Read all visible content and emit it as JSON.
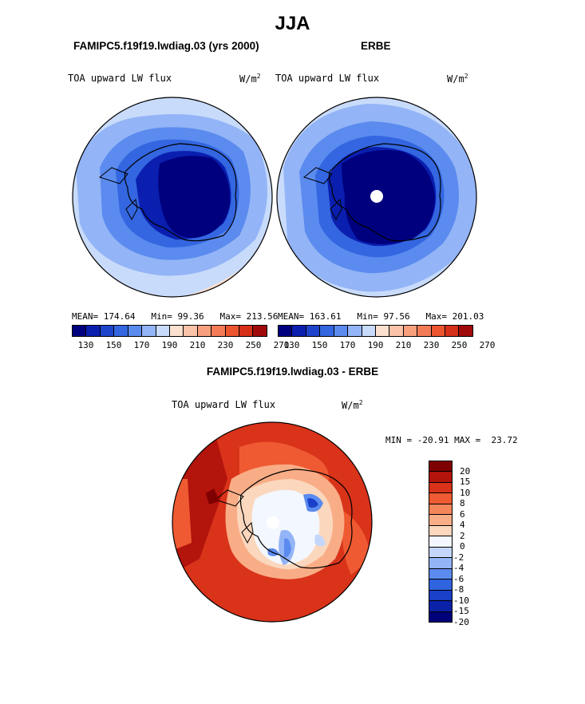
{
  "title": "JJA",
  "panel_model_label": "FAMIPC5.f19f19.lwdiag.03 (yrs 2000)",
  "panel_obs_label": "ERBE",
  "panel_diff_label": "FAMIPC5.f19f19.lwdiag.03 - ERBE",
  "variable": "TOA upward LW flux",
  "units": "W/m",
  "units_exp": "2",
  "colors": {
    "abs_scale": [
      "#00007f",
      "#0a1faf",
      "#1f44cc",
      "#3366e0",
      "#5b8bef",
      "#93b4f6",
      "#c8dbfb",
      "#fbe0d0",
      "#fbc3a8",
      "#f8a07e",
      "#f47b57",
      "#ec5530",
      "#d6301b",
      "#a00a0a"
    ],
    "diff_scale": [
      "#7f0000",
      "#b3140c",
      "#d9331a",
      "#ef5a32",
      "#f5855a",
      "#f9ad86",
      "#fbd7bd",
      "#f3f7ff",
      "#c4d6fb",
      "#93b4f6",
      "#5b8bef",
      "#2f63e0",
      "#1a3fc8",
      "#0a22a8",
      "#00007a"
    ],
    "continent_line": "#000000"
  },
  "chart_data": [
    {
      "type": "heatmap",
      "projection": "south-polar-stereographic",
      "title": "FAMIPC5.f19f19.lwdiag.03 (yrs 2000)",
      "variable": "TOA upward LW flux",
      "units": "W/m2",
      "mean": "174.64",
      "min": "99.36",
      "max": "213.56",
      "stats_labels": {
        "mean": "MEAN=",
        "min": "Min=",
        "max": "Max="
      },
      "colorbar_ticks": [
        "130",
        "150",
        "170",
        "190",
        "210",
        "230",
        "250",
        "270"
      ],
      "colorbar_levels": [
        120,
        130,
        140,
        150,
        160,
        170,
        180,
        190,
        200,
        210,
        220,
        230,
        240,
        250,
        260,
        270,
        280
      ]
    },
    {
      "type": "heatmap",
      "projection": "south-polar-stereographic",
      "title": "ERBE",
      "variable": "TOA upward LW flux",
      "units": "W/m2",
      "mean": "163.61",
      "min": "97.56",
      "max": "201.03",
      "stats_labels": {
        "mean": "MEAN=",
        "min": "Min=",
        "max": "Max="
      },
      "colorbar_ticks": [
        "130",
        "150",
        "170",
        "190",
        "210",
        "230",
        "250",
        "270"
      ],
      "colorbar_levels": [
        120,
        130,
        140,
        150,
        160,
        170,
        180,
        190,
        200,
        210,
        220,
        230,
        240,
        250,
        260,
        270,
        280
      ]
    },
    {
      "type": "heatmap",
      "projection": "south-polar-stereographic",
      "title": "FAMIPC5.f19f19.lwdiag.03 - ERBE",
      "variable": "TOA upward LW flux",
      "units": "W/m2",
      "min_label": "MIN =",
      "max_label": "MAX =",
      "min": "-20.91",
      "max": "23.72",
      "colorbar_ticks": [
        "20",
        "15",
        "10",
        "8",
        "6",
        "4",
        "2",
        "0",
        "-2",
        "-4",
        "-6",
        "-8",
        "-10",
        "-15",
        "-20"
      ],
      "colorbar_levels": [
        20,
        15,
        10,
        8,
        6,
        4,
        2,
        0,
        -2,
        -4,
        -6,
        -8,
        -10,
        -15,
        -20
      ]
    }
  ]
}
